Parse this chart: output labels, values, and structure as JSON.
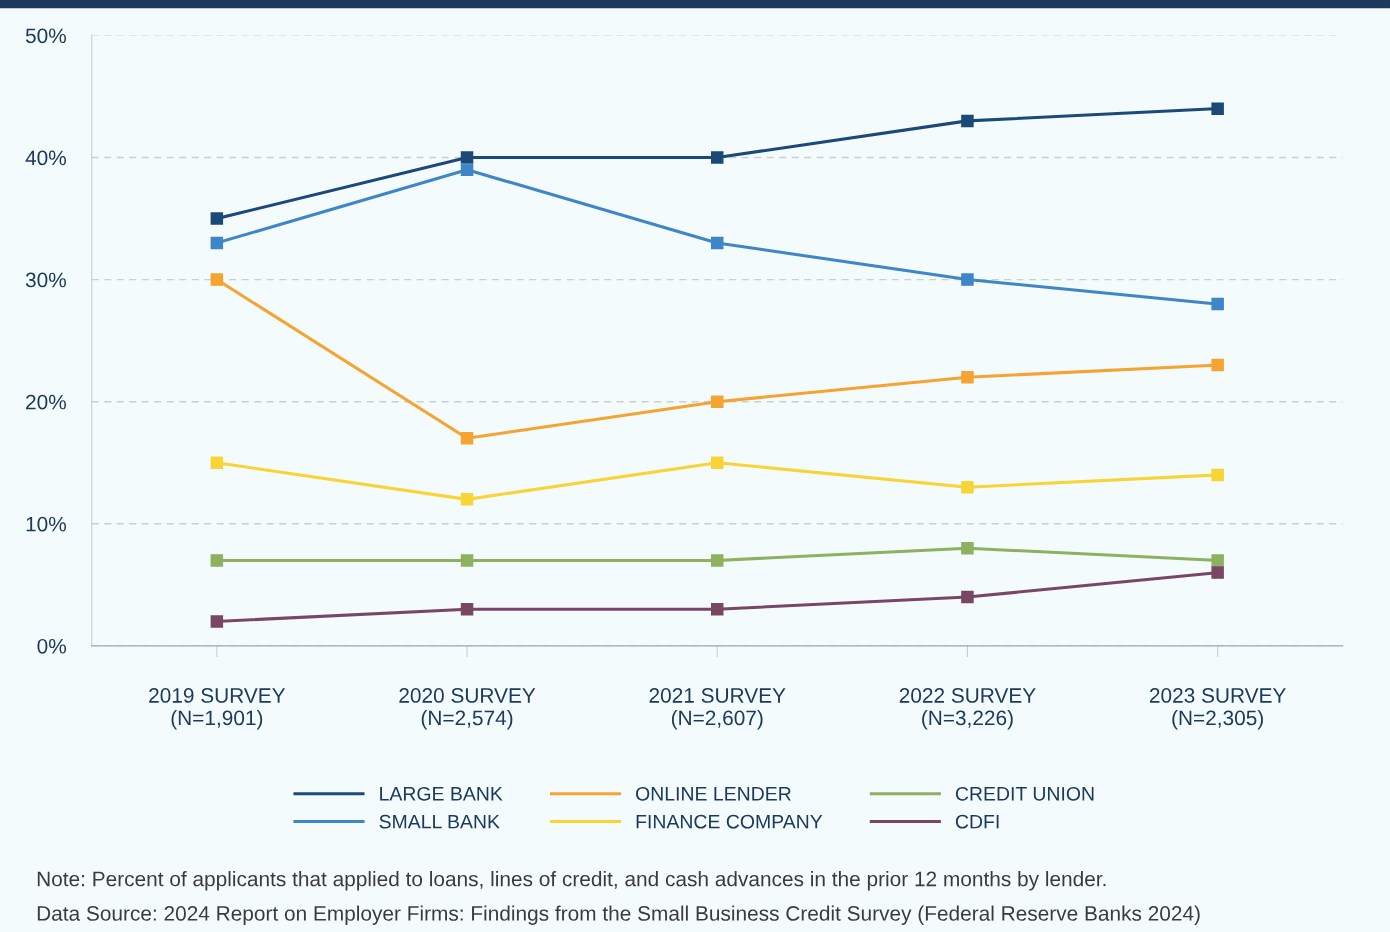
{
  "chart_data": {
    "type": "line",
    "categories": [
      "2019 SURVEY\n(N=1,901)",
      "2020 SURVEY\n(N=2,574)",
      "2021 SURVEY\n(N=2,607)",
      "2022 SURVEY\n(N=3,226)",
      "2023 SURVEY\n(N=2,305)"
    ],
    "series": [
      {
        "name": "LARGE BANK",
        "color": "#1b4a78",
        "values": [
          35,
          40,
          40,
          43,
          44
        ]
      },
      {
        "name": "SMALL BANK",
        "color": "#3f86c8",
        "values": [
          33,
          39,
          33,
          30,
          28
        ]
      },
      {
        "name": "ONLINE LENDER",
        "color": "#f5a431",
        "values": [
          30,
          17,
          20,
          22,
          23
        ]
      },
      {
        "name": "FINANCE COMPANY",
        "color": "#f8d436",
        "values": [
          15,
          12,
          15,
          13,
          14
        ]
      },
      {
        "name": "CREDIT UNION",
        "color": "#8db15f",
        "values": [
          7,
          7,
          7,
          8,
          7
        ]
      },
      {
        "name": "CDFI",
        "color": "#784766",
        "values": [
          2,
          3,
          3,
          4,
          6
        ]
      }
    ],
    "ylim": [
      0,
      50
    ],
    "yticks": [
      {
        "value": 0,
        "label": "0%"
      },
      {
        "value": 10,
        "label": "10%"
      },
      {
        "value": 20,
        "label": "20%"
      },
      {
        "value": 30,
        "label": "30%"
      },
      {
        "value": 40,
        "label": "40%"
      },
      {
        "value": 50,
        "label": "50%"
      }
    ],
    "grid": "y",
    "legend": "bottom",
    "marker": "square",
    "line_style": "solid",
    "annotations": [
      "Note: Percent of applicants that applied to loans, lines of credit, and cash advances in the prior 12 months by lender.",
      "Data Source: 2024 Report on Employer Firms: Findings from the Small Business Credit Survey (Federal Reserve Banks 2024)"
    ]
  }
}
